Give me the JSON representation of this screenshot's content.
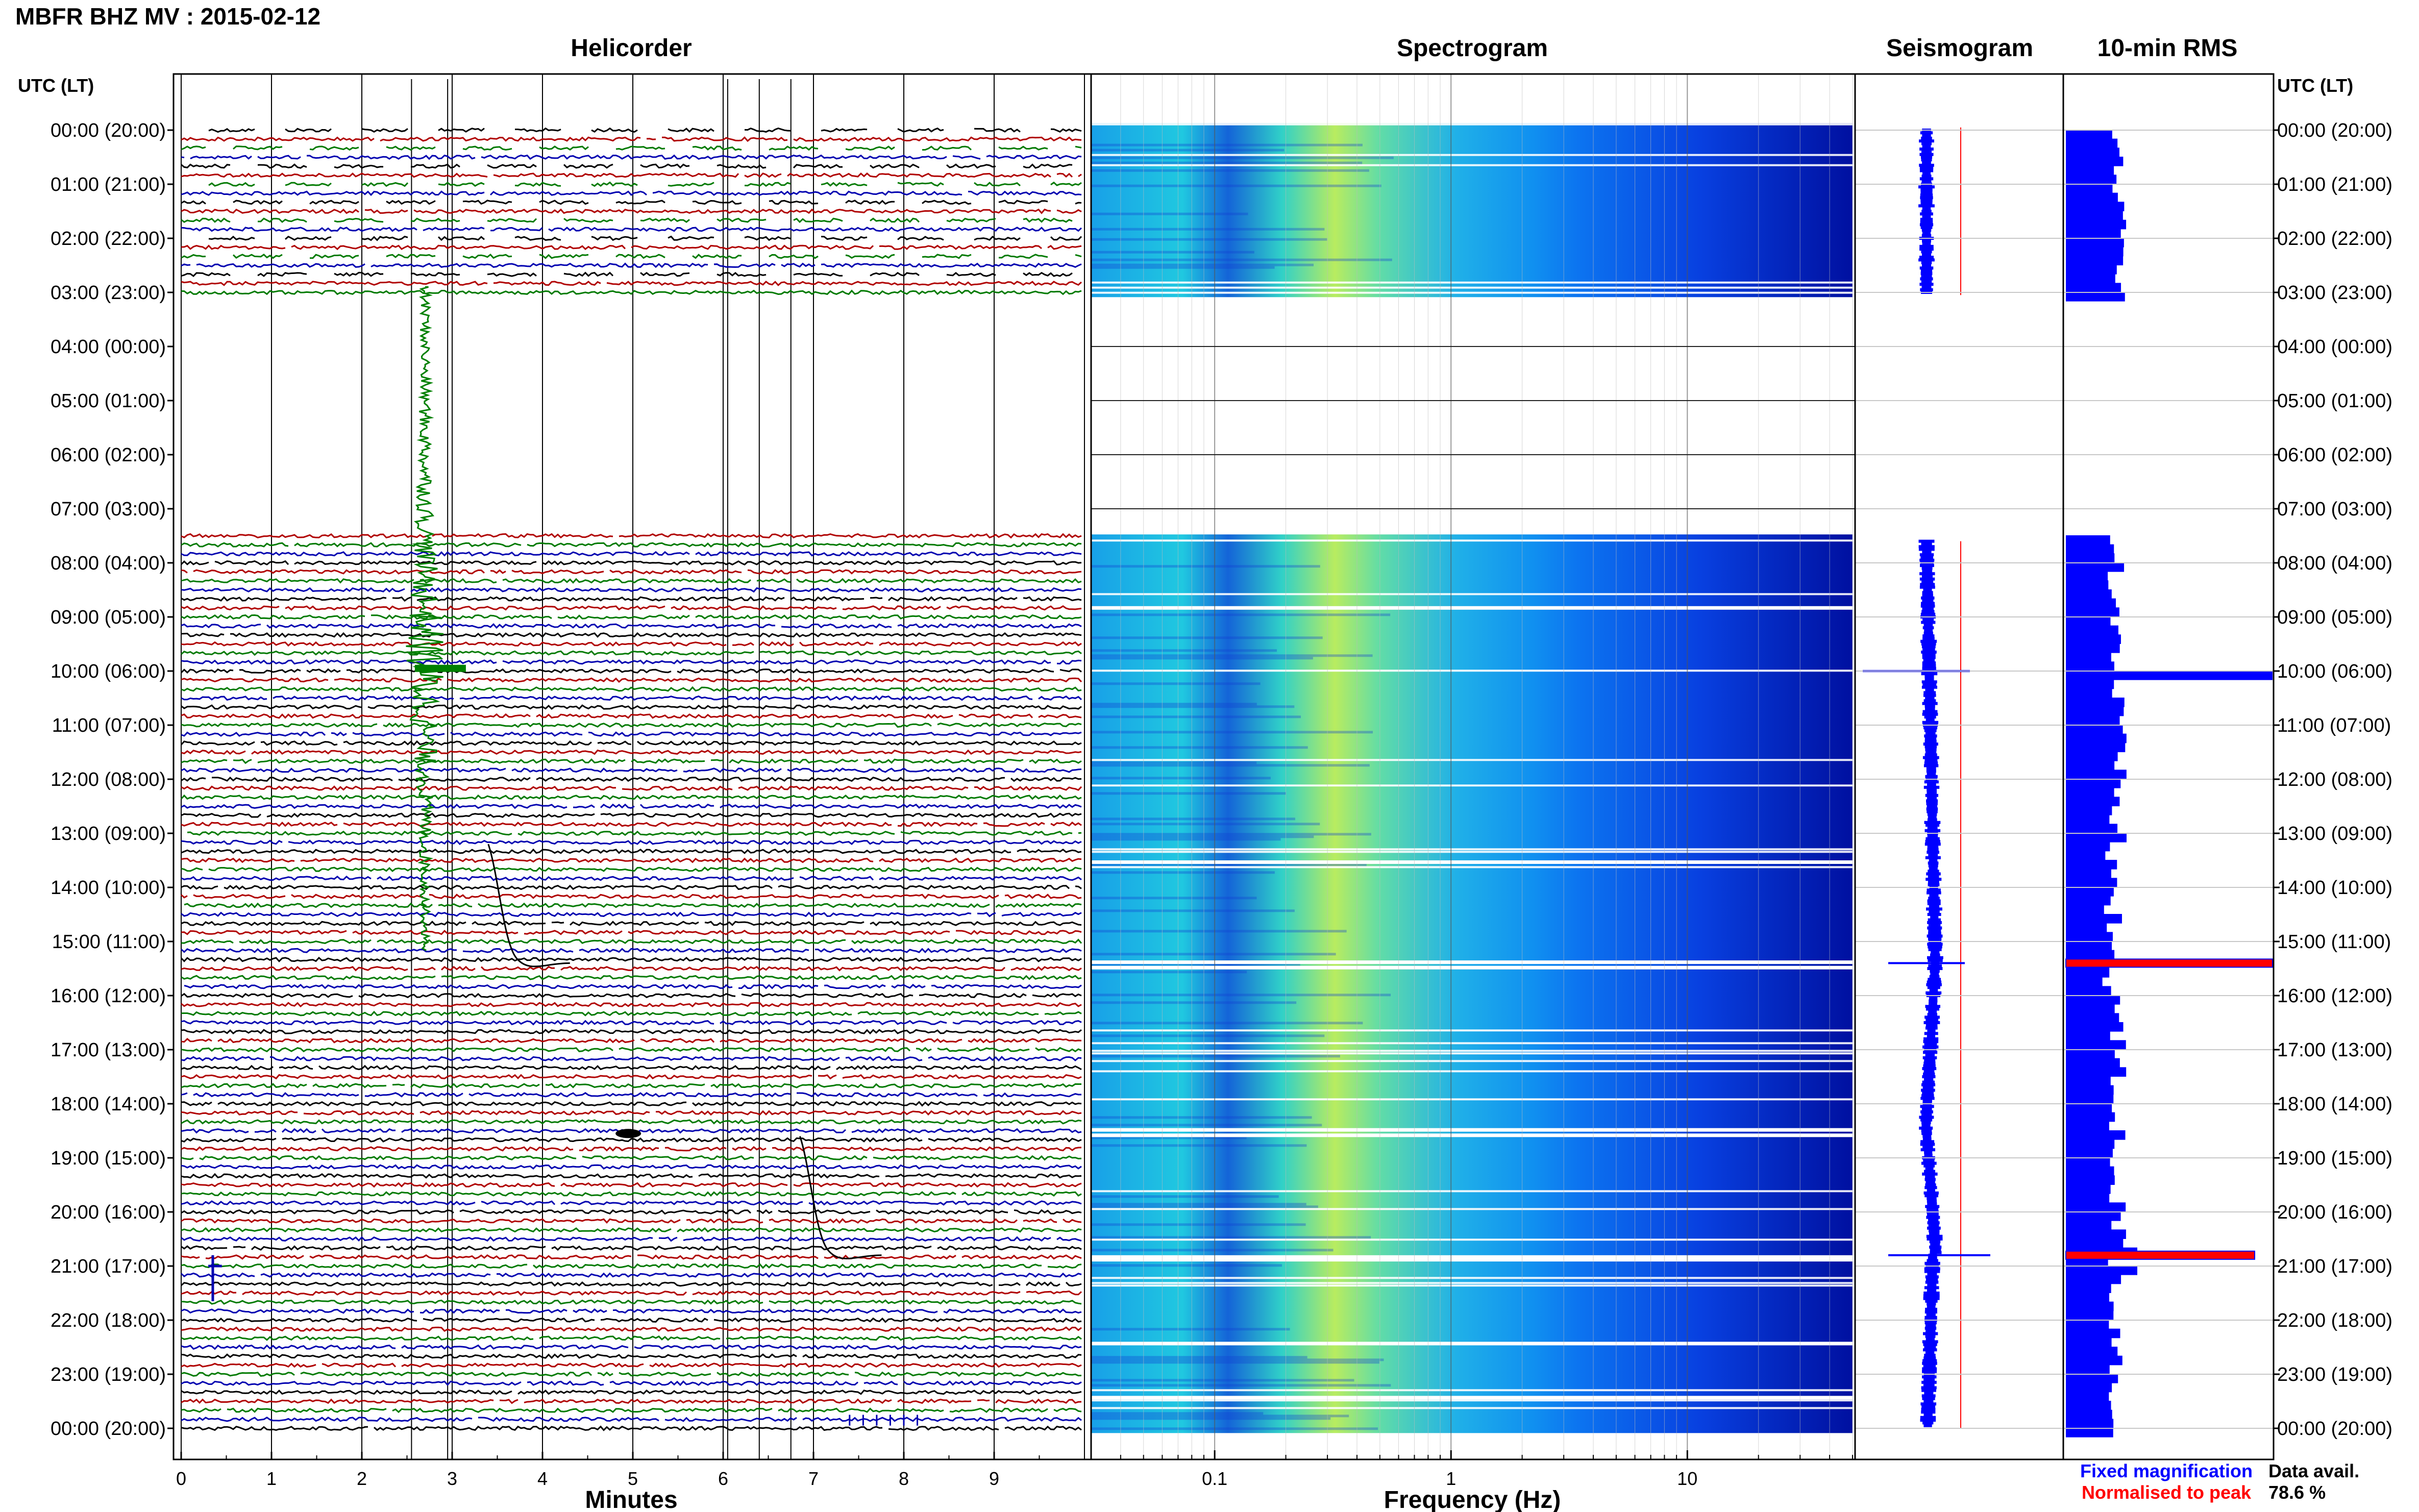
{
  "header": {
    "title": "MBFR BHZ MV : 2015-02-12"
  },
  "panels": {
    "helicorder": {
      "title": "Helicorder",
      "xlabel": "Minutes"
    },
    "spectrogram": {
      "title": "Spectrogram",
      "xlabel": "Frequency (Hz)"
    },
    "seismogram": {
      "title": "Seismogram"
    },
    "rms": {
      "title": "10-min RMS"
    }
  },
  "time_axis": {
    "left_header": "UTC (LT)",
    "right_header": "UTC (LT)",
    "labels": [
      "00:00 (20:00)",
      "01:00 (21:00)",
      "02:00 (22:00)",
      "03:00 (23:00)",
      "04:00 (00:00)",
      "05:00 (01:00)",
      "06:00 (02:00)",
      "07:00 (03:00)",
      "08:00 (04:00)",
      "09:00 (05:00)",
      "10:00 (06:00)",
      "11:00 (07:00)",
      "12:00 (08:00)",
      "13:00 (09:00)",
      "14:00 (10:00)",
      "15:00 (11:00)",
      "16:00 (12:00)",
      "17:00 (13:00)",
      "18:00 (14:00)",
      "19:00 (15:00)",
      "20:00 (16:00)",
      "21:00 (17:00)",
      "22:00 (18:00)",
      "23:00 (19:00)",
      "00:00 (20:00)"
    ]
  },
  "legend": {
    "fixed": "Fixed magnification",
    "normalised": "Normalised to peak",
    "fixed_color": "#0000ff",
    "normalised_color": "#ff0000"
  },
  "availability": {
    "label": "Data avail.",
    "value": "78.6 %"
  },
  "colors": {
    "trace_cycle": [
      "#000000",
      "#b00000",
      "#007a00",
      "#0000b0"
    ],
    "rms_bar": "#0000ff",
    "rms_peak": "#ff0000"
  },
  "chart_data": [
    {
      "type": "line",
      "name": "helicorder",
      "title": "Helicorder",
      "xlabel": "Minutes",
      "x_ticks": [
        0,
        1,
        2,
        3,
        4,
        5,
        6,
        7,
        8,
        9
      ],
      "xlim": [
        0,
        10
      ],
      "data_gap_hours": [
        3,
        7.5
      ]
    },
    {
      "type": "heatmap",
      "name": "spectrogram",
      "title": "Spectrogram",
      "xlabel": "Frequency (Hz)",
      "x_scale": "log",
      "x_ticks": [
        "0.1",
        "1",
        "10"
      ],
      "xlim": [
        0.03,
        50
      ],
      "data_gap_hours": [
        3,
        7.5
      ]
    },
    {
      "type": "line",
      "name": "seismogram",
      "title": "Seismogram"
    },
    {
      "type": "bar",
      "name": "10-min RMS",
      "title": "10-min RMS",
      "orientation": "horizontal",
      "peaks_hours": [
        10.0,
        15.4,
        20.8
      ]
    }
  ]
}
